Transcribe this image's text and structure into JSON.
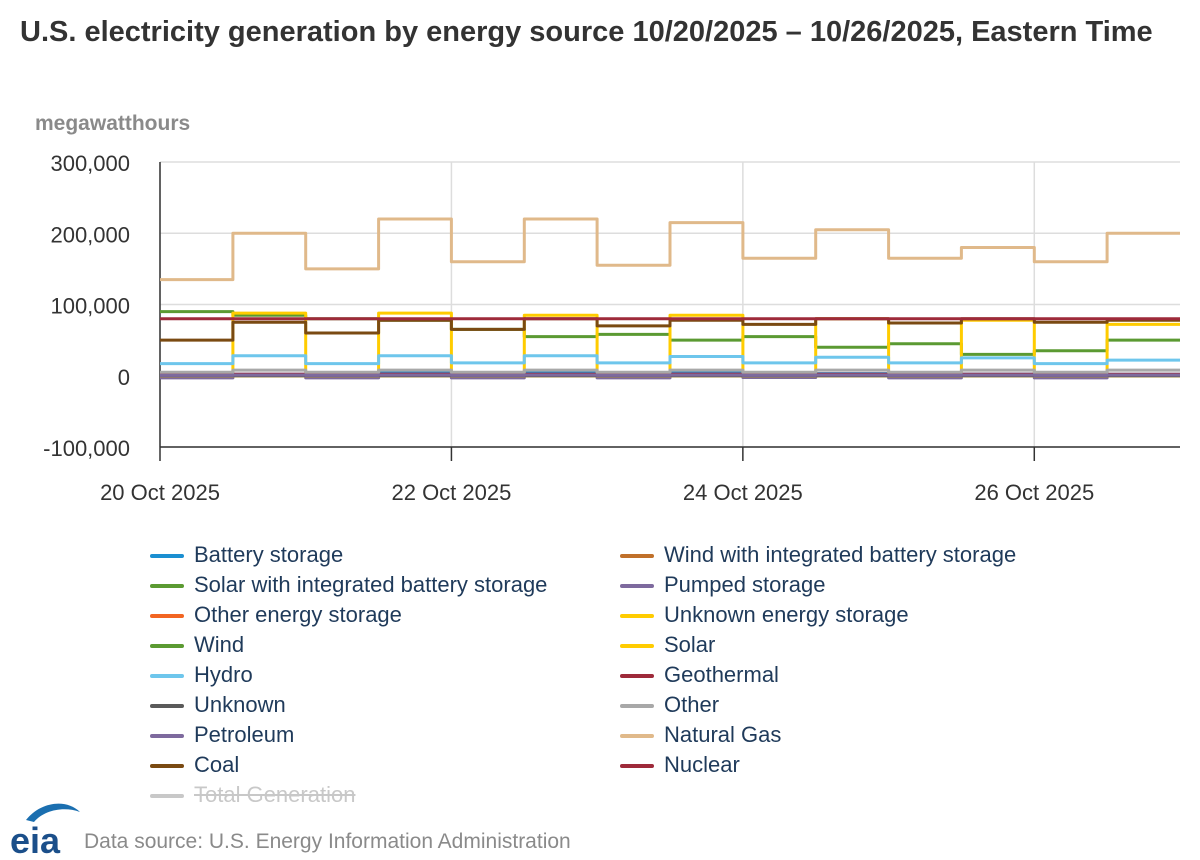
{
  "header": {
    "title": "U.S. electricity generation by energy source 10/20/2025 – 10/26/2025, Eastern Time",
    "y_unit": "megawatthours"
  },
  "footer": {
    "logo_text": "eia",
    "source": "Data source: U.S. Energy Information Administration"
  },
  "chart_data": {
    "type": "line",
    "title": "U.S. electricity generation by energy source 10/20/2025 – 10/26/2025, Eastern Time",
    "ylabel": "megawatthours",
    "xlabel": "",
    "ylim": [
      -100000,
      300000
    ],
    "y_ticks": [
      "300,000",
      "200,000",
      "100,000",
      "0",
      "-100,000"
    ],
    "y_tick_values": [
      300000,
      200000,
      100000,
      0,
      -100000
    ],
    "x_range": [
      "2025-10-20",
      "2025-10-27"
    ],
    "x_ticks": [
      "20 Oct 2025",
      "22 Oct 2025",
      "24 Oct 2025",
      "26 Oct 2025"
    ],
    "x_tick_dates": [
      "2025-10-20",
      "2025-10-22",
      "2025-10-24",
      "2025-10-26"
    ],
    "grid": true,
    "legend_position": "bottom",
    "hourly_start": "2025-10-20T00:00",
    "series": [
      {
        "name": "Battery storage",
        "color": "#1b8fd1",
        "hidden": false,
        "daily_values": [
          0,
          1000,
          2500,
          3000,
          2800,
          2000,
          1500
        ],
        "values": [
          0,
          2000,
          0,
          4000,
          -500,
          5000,
          0,
          4500,
          0,
          3000,
          0,
          2500,
          0,
          2000
        ]
      },
      {
        "name": "Wind with integrated battery storage",
        "color": "#c0702a",
        "hidden": false,
        "values": [
          0,
          0,
          0,
          0,
          0,
          0,
          0,
          0,
          0,
          0,
          0,
          0,
          0,
          0
        ]
      },
      {
        "name": "Solar with integrated battery storage",
        "color": "#5b9a32",
        "hidden": false,
        "values": [
          0,
          0,
          0,
          0,
          0,
          0,
          0,
          0,
          0,
          0,
          0,
          0,
          0,
          0
        ]
      },
      {
        "name": "Pumped storage",
        "color": "#7e6a9e",
        "hidden": false,
        "values": [
          -3000,
          2000,
          -3000,
          2500,
          -3000,
          2000,
          -3000,
          2500,
          -2500,
          2000,
          -3000,
          2000,
          -3000,
          1500
        ]
      },
      {
        "name": "Other energy storage",
        "color": "#f26522",
        "hidden": false,
        "values": [
          0,
          0,
          0,
          0,
          0,
          0,
          0,
          0,
          0,
          0,
          0,
          0,
          0,
          0
        ]
      },
      {
        "name": "Unknown energy storage",
        "color": "#ffcc00",
        "hidden": false,
        "values": [
          0,
          0,
          0,
          0,
          0,
          0,
          0,
          0,
          0,
          0,
          0,
          0,
          0,
          0
        ]
      },
      {
        "name": "Wind",
        "color": "#5b9a32",
        "hidden": false,
        "values": [
          90000,
          85000,
          80000,
          78000,
          65000,
          55000,
          58000,
          50000,
          55000,
          40000,
          45000,
          30000,
          35000,
          50000
        ]
      },
      {
        "name": "Solar",
        "color": "#ffcc00",
        "hidden": false,
        "values": [
          0,
          88000,
          0,
          88000,
          0,
          85000,
          0,
          85000,
          0,
          80000,
          0,
          78000,
          0,
          72000
        ]
      },
      {
        "name": "Hydro",
        "color": "#6ec6ec",
        "hidden": false,
        "values": [
          17000,
          28000,
          17000,
          28000,
          18000,
          28000,
          18000,
          27000,
          18000,
          26000,
          18000,
          25000,
          17000,
          22000
        ]
      },
      {
        "name": "Geothermal",
        "color": "#9e2a3a",
        "hidden": false,
        "values": [
          2000,
          2000,
          2000,
          2000,
          2000,
          2000,
          2000,
          2000,
          2000,
          2000,
          2000,
          2000,
          2000,
          2000
        ]
      },
      {
        "name": "Unknown",
        "color": "#5a5a5a",
        "hidden": false,
        "values": [
          0,
          0,
          0,
          0,
          0,
          0,
          0,
          0,
          0,
          0,
          0,
          0,
          0,
          0
        ]
      },
      {
        "name": "Other",
        "color": "#a8a8a8",
        "hidden": false,
        "values": [
          5000,
          8000,
          5000,
          8000,
          5000,
          8000,
          5000,
          8000,
          5000,
          8000,
          5000,
          8000,
          5000,
          8000
        ]
      },
      {
        "name": "Petroleum",
        "color": "#7e6a9e",
        "hidden": false,
        "values": [
          500,
          1000,
          500,
          1000,
          500,
          1000,
          500,
          1000,
          500,
          1000,
          500,
          1000,
          500,
          1000
        ]
      },
      {
        "name": "Natural Gas",
        "color": "#e0b98a",
        "hidden": false,
        "values": [
          135000,
          200000,
          150000,
          220000,
          160000,
          220000,
          155000,
          215000,
          165000,
          205000,
          165000,
          180000,
          160000,
          200000
        ]
      },
      {
        "name": "Coal",
        "color": "#7a4a12",
        "hidden": false,
        "values": [
          50000,
          75000,
          60000,
          78000,
          65000,
          80000,
          70000,
          78000,
          72000,
          80000,
          74000,
          80000,
          75000,
          78000
        ]
      },
      {
        "name": "Nuclear",
        "color": "#9e2a3a",
        "hidden": false,
        "values": [
          80000,
          80000,
          80000,
          80000,
          80000,
          80000,
          80000,
          80000,
          80000,
          80000,
          80000,
          80000,
          80000,
          80000
        ]
      },
      {
        "name": "Total Generation",
        "color": "#c8c8c8",
        "hidden": true,
        "values": []
      }
    ]
  }
}
